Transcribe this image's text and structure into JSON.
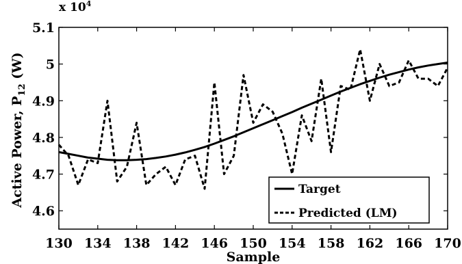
{
  "chart_data": {
    "type": "line",
    "xlabel": "Sample",
    "ylabel_main": "Active Power, P",
    "ylabel_sub": "12",
    "ylabel_unit": " (W)",
    "y_multiplier_prefix": "x 10",
    "y_multiplier_exp": "4",
    "xlim": [
      130,
      170
    ],
    "ylim": [
      4.55,
      5.1
    ],
    "xticks": [
      130,
      134,
      138,
      142,
      146,
      150,
      154,
      158,
      162,
      166,
      170
    ],
    "yticks": [
      4.6,
      4.7,
      4.8,
      4.9,
      5.0,
      5.1
    ],
    "ytick_labels": [
      "4.6",
      "4.7",
      "4.8",
      "4.9",
      "5",
      "5.1"
    ],
    "grid": false,
    "legend_position": "bottom-right",
    "series": [
      {
        "name": "Target",
        "style": "solid",
        "x": [
          130,
          131,
          132,
          133,
          134,
          135,
          136,
          137,
          138,
          139,
          140,
          141,
          142,
          143,
          144,
          145,
          146,
          147,
          148,
          149,
          150,
          151,
          152,
          153,
          154,
          155,
          156,
          157,
          158,
          159,
          160,
          161,
          162,
          163,
          164,
          165,
          166,
          167,
          168,
          169,
          170
        ],
        "values": [
          4.76,
          4.755,
          4.75,
          4.745,
          4.742,
          4.739,
          4.738,
          4.738,
          4.739,
          4.741,
          4.744,
          4.748,
          4.753,
          4.759,
          4.766,
          4.774,
          4.783,
          4.793,
          4.803,
          4.814,
          4.825,
          4.836,
          4.847,
          4.858,
          4.869,
          4.881,
          4.892,
          4.903,
          4.914,
          4.925,
          4.935,
          4.945,
          4.954,
          4.963,
          4.971,
          4.978,
          4.985,
          4.991,
          4.996,
          5.0,
          5.004
        ]
      },
      {
        "name": "Predicted (LM)",
        "style": "dashed",
        "x": [
          130,
          131,
          132,
          133,
          134,
          135,
          136,
          137,
          138,
          139,
          140,
          141,
          142,
          143,
          144,
          145,
          146,
          147,
          148,
          149,
          150,
          151,
          152,
          153,
          154,
          155,
          156,
          157,
          158,
          159,
          160,
          161,
          162,
          163,
          164,
          165,
          166,
          167,
          168,
          169,
          170
        ],
        "values": [
          4.78,
          4.75,
          4.67,
          4.74,
          4.73,
          4.9,
          4.68,
          4.72,
          4.84,
          4.67,
          4.7,
          4.72,
          4.67,
          4.74,
          4.75,
          4.66,
          4.95,
          4.7,
          4.75,
          4.97,
          4.84,
          4.89,
          4.87,
          4.81,
          4.7,
          4.86,
          4.79,
          4.96,
          4.76,
          4.94,
          4.93,
          5.04,
          4.9,
          5.0,
          4.94,
          4.95,
          5.01,
          4.96,
          4.96,
          4.94,
          4.99
        ]
      }
    ]
  }
}
